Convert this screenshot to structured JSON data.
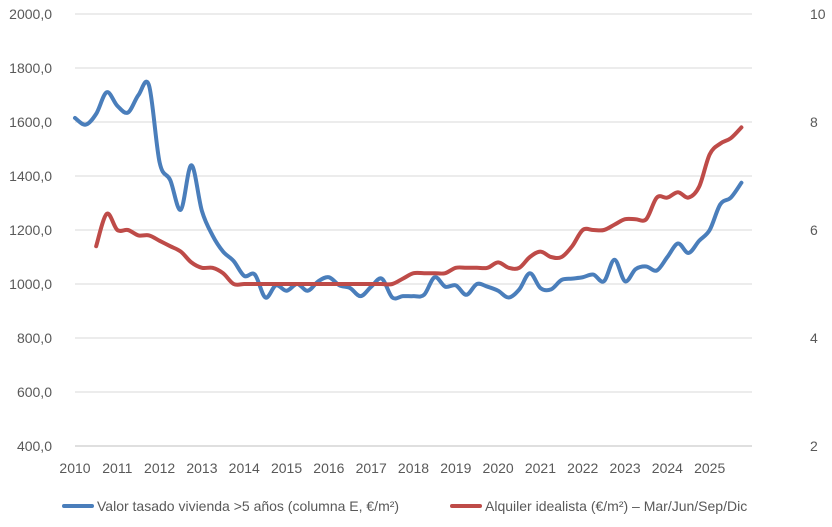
{
  "chart_data": {
    "type": "line",
    "title": "",
    "x_ticks": [
      "2010",
      "2011",
      "2012",
      "2013",
      "2014",
      "2015",
      "2016",
      "2017",
      "2018",
      "2019",
      "2020",
      "2021",
      "2022",
      "2023",
      "2024",
      "2025"
    ],
    "xlim": [
      2010,
      2026
    ],
    "y_left": {
      "ticks": [
        "400,0",
        "600,0",
        "800,0",
        "1000,0",
        "1200,0",
        "1400,0",
        "1600,0",
        "1800,0",
        "2000,0"
      ],
      "ylim": [
        400,
        2000
      ]
    },
    "y_right": {
      "ticks": [
        "2",
        "4",
        "6",
        "8",
        "10"
      ],
      "ylim": [
        2,
        10
      ]
    },
    "grid": true,
    "legend_position": "bottom",
    "series": [
      {
        "name": "Valor tasado vivienda >5 años (columna E, €/m²)",
        "axis": "left",
        "color": "#4a7ebb",
        "x": [
          2010.0,
          2010.25,
          2010.5,
          2010.75,
          2011.0,
          2011.25,
          2011.5,
          2011.75,
          2012.0,
          2012.25,
          2012.5,
          2012.75,
          2013.0,
          2013.25,
          2013.5,
          2013.75,
          2014.0,
          2014.25,
          2014.5,
          2014.75,
          2015.0,
          2015.25,
          2015.5,
          2015.75,
          2016.0,
          2016.25,
          2016.5,
          2016.75,
          2017.0,
          2017.25,
          2017.5,
          2017.75,
          2018.0,
          2018.25,
          2018.5,
          2018.75,
          2019.0,
          2019.25,
          2019.5,
          2019.75,
          2020.0,
          2020.25,
          2020.5,
          2020.75,
          2021.0,
          2021.25,
          2021.5,
          2021.75,
          2022.0,
          2022.25,
          2022.5,
          2022.75,
          2023.0,
          2023.25,
          2023.5,
          2023.75,
          2024.0,
          2024.25,
          2024.5,
          2024.75,
          2025.0,
          2025.25,
          2025.5,
          2025.75
        ],
        "values": [
          1615,
          1590,
          1630,
          1710,
          1660,
          1635,
          1700,
          1735,
          1450,
          1385,
          1275,
          1440,
          1270,
          1180,
          1120,
          1085,
          1030,
          1035,
          950,
          995,
          975,
          1000,
          975,
          1010,
          1025,
          995,
          985,
          955,
          990,
          1020,
          950,
          955,
          955,
          960,
          1025,
          990,
          995,
          960,
          1000,
          990,
          975,
          950,
          980,
          1040,
          985,
          980,
          1015,
          1020,
          1025,
          1035,
          1010,
          1090,
          1010,
          1055,
          1065,
          1050,
          1100,
          1150,
          1115,
          1160,
          1200,
          1295,
          1320,
          1375
        ]
      },
      {
        "name": "Alquiler idealista (€/m²) – Mar/Jun/Sep/Dic",
        "axis": "right",
        "color": "#be4b48",
        "x": [
          2010.5,
          2010.75,
          2011.0,
          2011.25,
          2011.5,
          2011.75,
          2012.0,
          2012.25,
          2012.5,
          2012.75,
          2013.0,
          2013.25,
          2013.5,
          2013.75,
          2014.0,
          2014.25,
          2014.5,
          2014.75,
          2015.0,
          2015.25,
          2015.5,
          2015.75,
          2016.0,
          2016.25,
          2016.5,
          2016.75,
          2017.0,
          2017.25,
          2017.5,
          2017.75,
          2018.0,
          2018.25,
          2018.5,
          2018.75,
          2019.0,
          2019.25,
          2019.5,
          2019.75,
          2020.0,
          2020.25,
          2020.5,
          2020.75,
          2021.0,
          2021.25,
          2021.5,
          2021.75,
          2022.0,
          2022.25,
          2022.5,
          2022.75,
          2023.0,
          2023.25,
          2023.5,
          2023.75,
          2024.0,
          2024.25,
          2024.5,
          2024.75,
          2025.0,
          2025.25,
          2025.5,
          2025.75
        ],
        "values": [
          5.7,
          6.3,
          6.0,
          6.0,
          5.9,
          5.9,
          5.8,
          5.7,
          5.6,
          5.4,
          5.3,
          5.3,
          5.2,
          5.0,
          5.0,
          5.0,
          5.0,
          5.0,
          5.0,
          5.0,
          5.0,
          5.0,
          5.0,
          5.0,
          5.0,
          5.0,
          5.0,
          5.0,
          5.0,
          5.1,
          5.2,
          5.2,
          5.2,
          5.2,
          5.3,
          5.3,
          5.3,
          5.3,
          5.4,
          5.3,
          5.3,
          5.5,
          5.6,
          5.5,
          5.5,
          5.7,
          6.0,
          6.0,
          6.0,
          6.1,
          6.2,
          6.2,
          6.2,
          6.6,
          6.6,
          6.7,
          6.6,
          6.8,
          7.4,
          7.6,
          7.7,
          7.9
        ]
      }
    ]
  }
}
